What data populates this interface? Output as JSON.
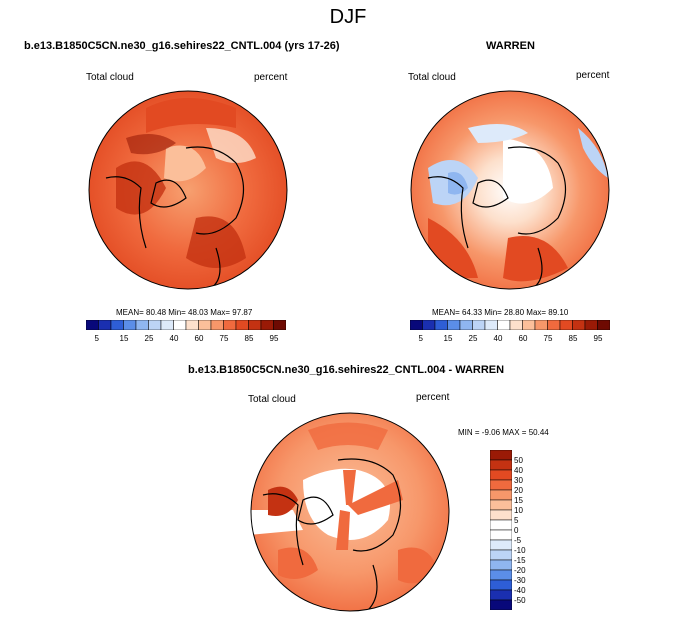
{
  "figure_title": "DJF",
  "panels": [
    {
      "header": "b.e13.B1850C5CN.ne30_g16.sehires22_CNTL.004 (yrs 17-26)",
      "left_label": "Total cloud",
      "right_label": "percent",
      "stats": "MEAN=  80.48  Min=  48.03  Max=  97.87",
      "colorbar_labels": [
        "5",
        "15",
        "25",
        "40",
        "60",
        "75",
        "85",
        "95"
      ]
    },
    {
      "header": "WARREN",
      "left_label": "Total cloud",
      "right_label": "percent",
      "stats": "MEAN=  64.33  Min=  28.80  Max=  89.10",
      "colorbar_labels": [
        "5",
        "15",
        "25",
        "40",
        "60",
        "75",
        "85",
        "95"
      ]
    },
    {
      "header": "b.e13.B1850C5CN.ne30_g16.sehires22_CNTL.004 - WARREN",
      "left_label": "Total cloud",
      "right_label": "percent",
      "stats": "MIN =  -9.06 MAX =  50.44",
      "colorbar_labels": [
        "50",
        "40",
        "30",
        "20",
        "15",
        "10",
        "5",
        "0",
        "-5",
        "-10",
        "-15",
        "-20",
        "-30",
        "-40",
        "-50"
      ]
    }
  ],
  "colors": {
    "seq": [
      "#08087a",
      "#1a2fb0",
      "#2e5ed6",
      "#5b8ee8",
      "#8fb6f0",
      "#bcd4f6",
      "#ddeafa",
      "#ffffff",
      "#fde0cc",
      "#fbbf9a",
      "#f7976a",
      "#f06a3e",
      "#e24a22",
      "#c43212",
      "#9a1a06",
      "#6e0a02"
    ],
    "diff": [
      "#9a1a06",
      "#c43212",
      "#e24a22",
      "#f06a3e",
      "#f7976a",
      "#fbbf9a",
      "#fde0cc",
      "#ffffff",
      "#ffffff",
      "#ddeafa",
      "#bcd4f6",
      "#8fb6f0",
      "#5b8ee8",
      "#2e5ed6",
      "#1a2fb0",
      "#08087a"
    ]
  }
}
